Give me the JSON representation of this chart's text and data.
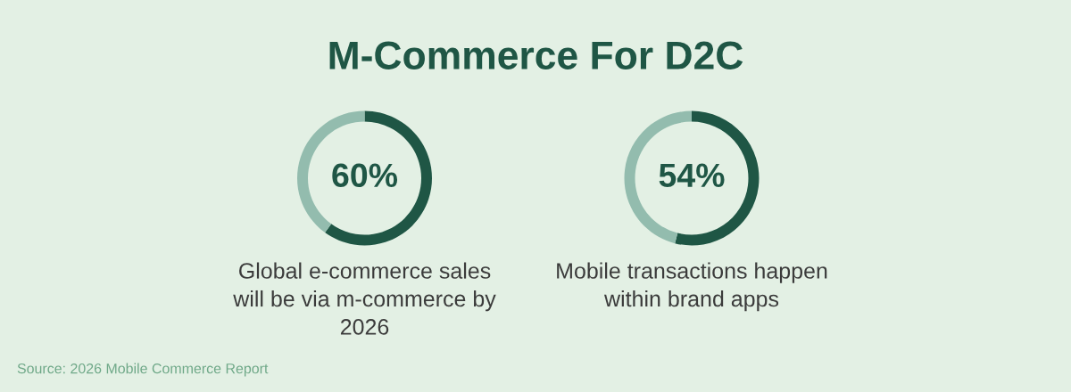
{
  "chart_data": [
    {
      "type": "other",
      "title": "M-Commerce For D2C",
      "annotations": [
        "Source: 2026 Mobile Commerce Report"
      ]
    },
    {
      "type": "donut",
      "categories": [
        null,
        null
      ],
      "values": [
        60,
        40
      ],
      "colors": [
        "#1f5645",
        "#93bcae"
      ],
      "value_labels": [
        "60%",
        null
      ],
      "annotations": [
        "Global e-commerce sales will be via m-commerce by 2026"
      ]
    },
    {
      "type": "donut",
      "categories": [
        null,
        null
      ],
      "values": [
        54,
        46
      ],
      "colors": [
        "#1f5645",
        "#93bcae"
      ],
      "value_labels": [
        "54%",
        null
      ],
      "annotations": [
        "Mobile transactions happen within brand apps"
      ]
    }
  ]
}
